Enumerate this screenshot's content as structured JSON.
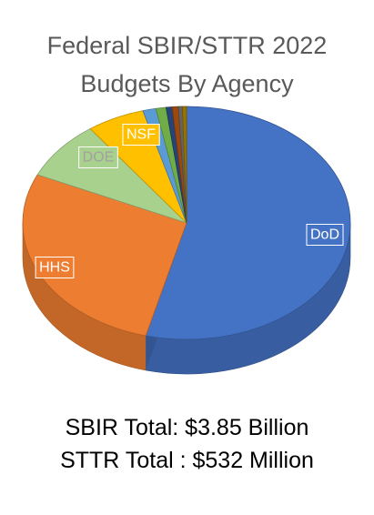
{
  "title_lines": [
    "Federal SBIR/STTR 2022",
    "Budgets By Agency"
  ],
  "totals": {
    "sbir": "SBIR Total: $3.85 Billion",
    "sttr": "STTR Total : $532 Million"
  },
  "chart_data": {
    "type": "pie",
    "style": "3d",
    "title": "Federal SBIR/STTR 2022 Budgets By Agency",
    "slices": [
      {
        "label": "DoD",
        "value": 54.0,
        "color": "#4472C4"
      },
      {
        "label": "HHS",
        "value": 27.8,
        "color": "#ED7D31"
      },
      {
        "label": "DOE",
        "value": 8.2,
        "color": "#A9D18E"
      },
      {
        "label": "NSF",
        "value": 5.7,
        "color": "#FFC000"
      },
      {
        "label": "",
        "value": 1.3,
        "color": "#5B9BD5"
      },
      {
        "label": "",
        "value": 1.0,
        "color": "#70AD47"
      },
      {
        "label": "",
        "value": 0.6,
        "color": "#264478"
      },
      {
        "label": "",
        "value": 0.6,
        "color": "#9E480E"
      },
      {
        "label": "",
        "value": 0.4,
        "color": "#636363"
      },
      {
        "label": "",
        "value": 0.4,
        "color": "#997300"
      }
    ],
    "labels_shown": [
      "DoD",
      "HHS",
      "DOE",
      "NSF"
    ],
    "legend": "none"
  }
}
